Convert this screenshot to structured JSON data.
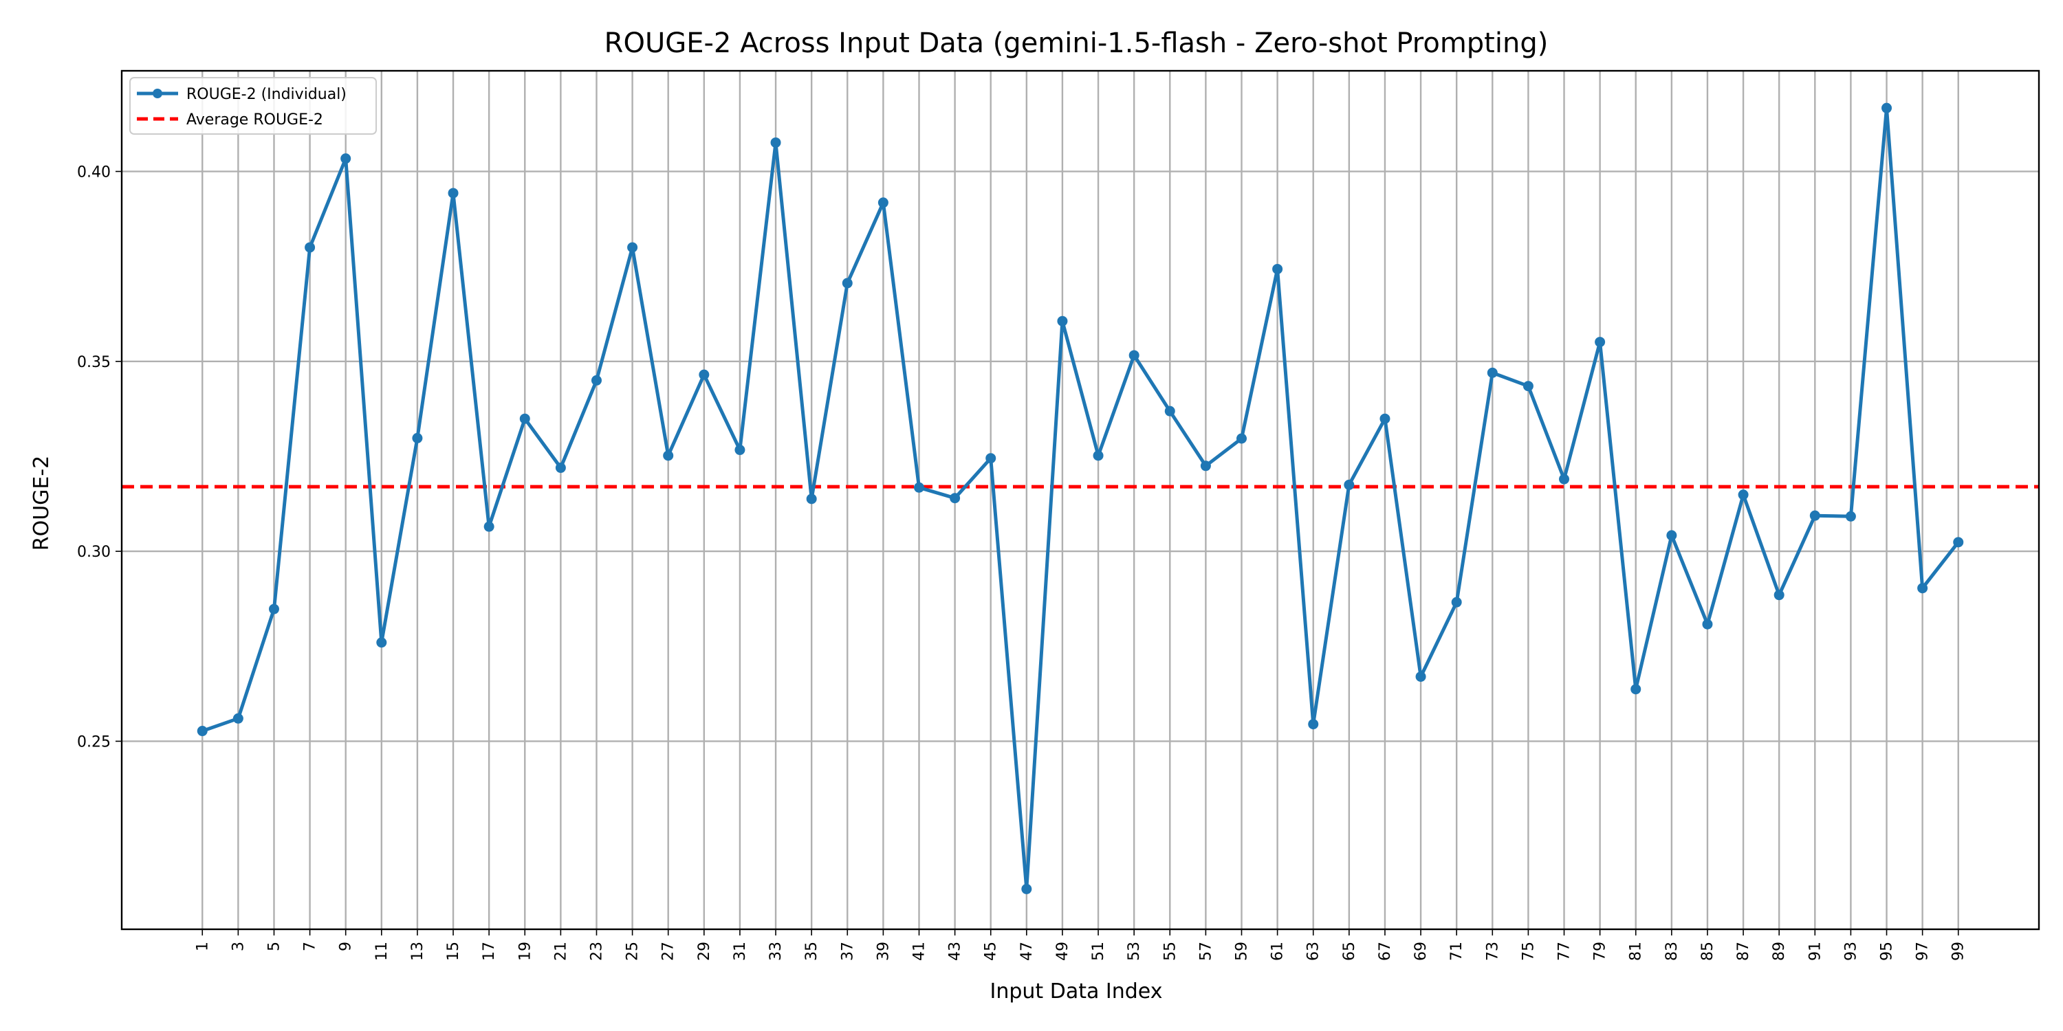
{
  "chart_data": {
    "type": "line",
    "title": "ROUGE-2 Across Input Data (gemini-1.5-flash - Zero-shot Prompting)",
    "xlabel": "Input Data Index",
    "ylabel": "ROUGE-2",
    "x": [
      1,
      3,
      5,
      7,
      9,
      11,
      13,
      15,
      17,
      19,
      21,
      23,
      25,
      27,
      29,
      31,
      33,
      35,
      37,
      39,
      41,
      43,
      45,
      47,
      49,
      51,
      53,
      55,
      57,
      59,
      61,
      63,
      65,
      67,
      69,
      71,
      73,
      75,
      77,
      79,
      81,
      83,
      85,
      87,
      89,
      91,
      93,
      95,
      97,
      99
    ],
    "xtick_labels": [
      "1",
      "3",
      "5",
      "7",
      "9",
      "11",
      "13",
      "15",
      "17",
      "19",
      "21",
      "23",
      "25",
      "27",
      "29",
      "31",
      "33",
      "35",
      "37",
      "39",
      "41",
      "43",
      "45",
      "47",
      "49",
      "51",
      "53",
      "55",
      "57",
      "59",
      "61",
      "63",
      "65",
      "67",
      "69",
      "71",
      "73",
      "75",
      "77",
      "79",
      "81",
      "83",
      "85",
      "87",
      "89",
      "91",
      "93",
      "95",
      "97",
      "99"
    ],
    "ytick_values": [
      0.25,
      0.3,
      0.35,
      0.4
    ],
    "ytick_labels": [
      "0.25",
      "0.30",
      "0.35",
      "0.40"
    ],
    "xlim": [
      -3.5,
      103.5
    ],
    "ylim": [
      0.2005,
      0.4265
    ],
    "grid": true,
    "legend_position": "upper-left",
    "series": [
      {
        "name": "ROUGE-2 (Individual)",
        "style": "line-with-markers",
        "color": "#1f77b4",
        "values": [
          0.2527,
          0.256,
          0.2848,
          0.38,
          0.4034,
          0.276,
          0.3298,
          0.3943,
          0.3065,
          0.3349,
          0.322,
          0.345,
          0.38,
          0.3252,
          0.3465,
          0.3267,
          0.4076,
          0.3138,
          0.3706,
          0.3918,
          0.3168,
          0.314,
          0.3245,
          0.2111,
          0.3606,
          0.3252,
          0.3516,
          0.3369,
          0.3225,
          0.3297,
          0.3743,
          0.2545,
          0.3175,
          0.3349,
          0.267,
          0.2866,
          0.347,
          0.3435,
          0.319,
          0.3551,
          0.2637,
          0.3042,
          0.2808,
          0.3149,
          0.2885,
          0.3094,
          0.3092,
          0.4167,
          0.2903,
          0.3024
        ]
      },
      {
        "name": "Average ROUGE-2",
        "style": "dashed-horizontal",
        "color": "#ff0000",
        "value": 0.317
      }
    ]
  }
}
